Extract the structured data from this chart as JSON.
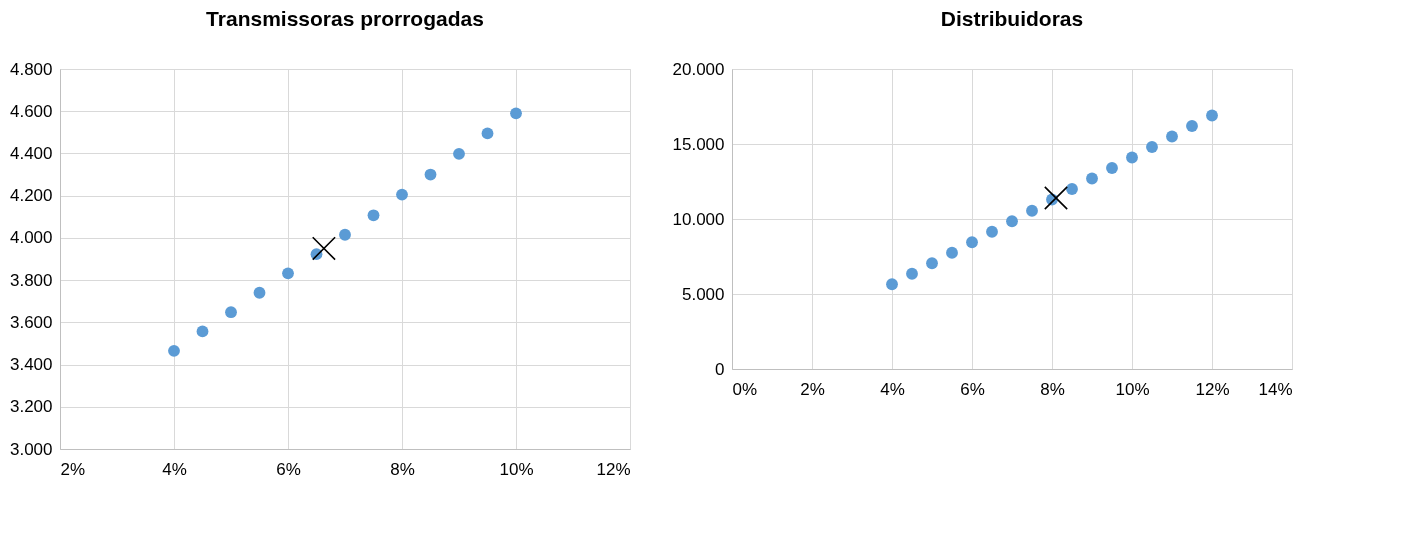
{
  "chart_data": [
    {
      "type": "scatter",
      "title": "Transmissoras prorrogadas",
      "grid": true,
      "xlim": [
        2,
        12
      ],
      "xticks": [
        {
          "value": 2,
          "label": "2%"
        },
        {
          "value": 4,
          "label": "4%"
        },
        {
          "value": 6,
          "label": "6%"
        },
        {
          "value": 8,
          "label": "8%"
        },
        {
          "value": 10,
          "label": "10%"
        },
        {
          "value": 12,
          "label": "12%"
        }
      ],
      "ylim": [
        3000,
        4800
      ],
      "yticks": [
        {
          "value": 3000,
          "label": "3.000"
        },
        {
          "value": 3200,
          "label": "3.200"
        },
        {
          "value": 3400,
          "label": "3.400"
        },
        {
          "value": 3600,
          "label": "3.600"
        },
        {
          "value": 3800,
          "label": "3.800"
        },
        {
          "value": 4000,
          "label": "4.000"
        },
        {
          "value": 4200,
          "label": "4.200"
        },
        {
          "value": 4400,
          "label": "4.400"
        },
        {
          "value": 4600,
          "label": "4.600"
        },
        {
          "value": 4800,
          "label": "4.800"
        }
      ],
      "series": [
        {
          "color": "#5b9bd5",
          "marker": "circle",
          "x": [
            4,
            4.5,
            5,
            5.5,
            6,
            6.5,
            7,
            7.5,
            8,
            8.5,
            9,
            9.5,
            10
          ],
          "values": [
            3465,
            3557,
            3648,
            3740,
            3832,
            3923,
            4015,
            4107,
            4205,
            4300,
            4398,
            4495,
            4590
          ]
        },
        {
          "color": "#000000",
          "marker": "cross",
          "x": [
            6.63
          ],
          "values": [
            3950
          ]
        }
      ]
    },
    {
      "type": "scatter",
      "title": "Distribuidoras",
      "grid": true,
      "xlim": [
        0,
        14
      ],
      "xticks": [
        {
          "value": 0,
          "label": "0%"
        },
        {
          "value": 2,
          "label": "2%"
        },
        {
          "value": 4,
          "label": "4%"
        },
        {
          "value": 6,
          "label": "6%"
        },
        {
          "value": 8,
          "label": "8%"
        },
        {
          "value": 10,
          "label": "10%"
        },
        {
          "value": 12,
          "label": "12%"
        },
        {
          "value": 14,
          "label": "14%"
        }
      ],
      "ylim": [
        0,
        20000
      ],
      "yticks": [
        0,
        {
          "value": 5000,
          "label": "5.000"
        },
        {
          "value": 10000,
          "label": "10.000"
        },
        {
          "value": 15000,
          "label": "15.000"
        },
        {
          "value": 20000,
          "label": "20.000"
        }
      ],
      "series": [
        {
          "color": "#5b9bd5",
          "marker": "circle",
          "x": [
            4,
            4.5,
            5,
            5.5,
            6,
            6.5,
            7,
            7.5,
            8,
            8.5,
            9,
            9.5,
            10,
            10.5,
            11,
            11.5,
            12
          ],
          "values": [
            5650,
            6350,
            7050,
            7750,
            8450,
            9150,
            9850,
            10550,
            11300,
            12000,
            12700,
            13400,
            14100,
            14800,
            15500,
            16200,
            16900
          ]
        },
        {
          "color": "#000000",
          "marker": "cross",
          "x": [
            8.1
          ],
          "values": [
            11400
          ]
        }
      ]
    }
  ]
}
